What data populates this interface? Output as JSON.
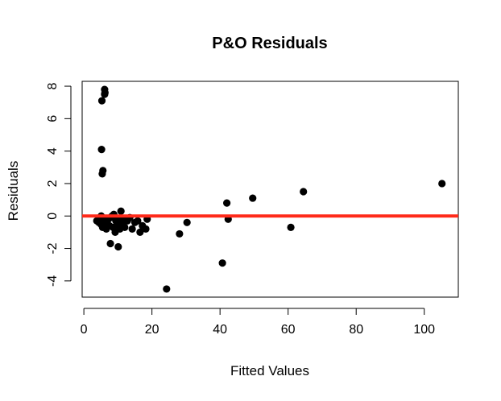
{
  "chart_data": {
    "type": "scatter",
    "title": "P&O Residuals",
    "xlabel": "Fitted Values",
    "ylabel": "Residuals",
    "xlim": [
      -0.5,
      110
    ],
    "ylim": [
      -5,
      8.3
    ],
    "x_ticks": [
      0,
      20,
      40,
      60,
      80,
      100
    ],
    "y_ticks": [
      -4,
      -2,
      0,
      2,
      4,
      6,
      8
    ],
    "x_tick_labels": [
      "0",
      "20",
      "40",
      "60",
      "80",
      "100"
    ],
    "y_tick_labels": [
      "-4",
      "-2",
      "0",
      "2",
      "4",
      "6",
      "8"
    ],
    "grid": false,
    "reference_line": {
      "y": 0,
      "color": "#ff2a1a"
    },
    "point_color": "#000000",
    "points": [
      {
        "x": 6.1,
        "y": 7.8
      },
      {
        "x": 6.2,
        "y": 7.6
      },
      {
        "x": 6.1,
        "y": 7.5
      },
      {
        "x": 5.3,
        "y": 7.1
      },
      {
        "x": 5.2,
        "y": 4.1
      },
      {
        "x": 5.6,
        "y": 2.8
      },
      {
        "x": 5.4,
        "y": 2.6
      },
      {
        "x": 105.2,
        "y": 2.0
      },
      {
        "x": 64.5,
        "y": 1.5
      },
      {
        "x": 49.6,
        "y": 1.1
      },
      {
        "x": 42.0,
        "y": 0.8
      },
      {
        "x": 42.4,
        "y": -0.2
      },
      {
        "x": 60.8,
        "y": -0.7
      },
      {
        "x": 30.3,
        "y": -0.4
      },
      {
        "x": 28.1,
        "y": -1.1
      },
      {
        "x": 40.7,
        "y": -2.9
      },
      {
        "x": 24.3,
        "y": -4.5
      },
      {
        "x": 7.8,
        "y": -1.7
      },
      {
        "x": 10.1,
        "y": -1.9
      },
      {
        "x": 9.2,
        "y": -1.0
      },
      {
        "x": 10.9,
        "y": 0.3
      },
      {
        "x": 3.8,
        "y": -0.3
      },
      {
        "x": 4.4,
        "y": -0.4
      },
      {
        "x": 5.0,
        "y": -0.5
      },
      {
        "x": 5.5,
        "y": -0.7
      },
      {
        "x": 6.2,
        "y": -0.6
      },
      {
        "x": 6.8,
        "y": -0.4
      },
      {
        "x": 7.2,
        "y": -0.2
      },
      {
        "x": 7.8,
        "y": -0.1
      },
      {
        "x": 8.3,
        "y": 0.0
      },
      {
        "x": 8.8,
        "y": 0.1
      },
      {
        "x": 9.4,
        "y": -0.3
      },
      {
        "x": 9.9,
        "y": -0.5
      },
      {
        "x": 10.6,
        "y": -0.8
      },
      {
        "x": 11.2,
        "y": -0.5
      },
      {
        "x": 12.0,
        "y": -0.7
      },
      {
        "x": 12.8,
        "y": -0.3
      },
      {
        "x": 13.5,
        "y": -0.1
      },
      {
        "x": 14.2,
        "y": -0.8
      },
      {
        "x": 15.0,
        "y": -0.4
      },
      {
        "x": 15.8,
        "y": -0.3
      },
      {
        "x": 16.5,
        "y": -1.0
      },
      {
        "x": 17.2,
        "y": -0.6
      },
      {
        "x": 18.2,
        "y": -0.8
      },
      {
        "x": 18.6,
        "y": -0.2
      },
      {
        "x": 5.8,
        "y": -0.2
      },
      {
        "x": 6.6,
        "y": -0.8
      },
      {
        "x": 7.5,
        "y": -0.6
      },
      {
        "x": 8.6,
        "y": -0.7
      },
      {
        "x": 9.6,
        "y": -0.2
      },
      {
        "x": 10.3,
        "y": -0.3
      },
      {
        "x": 11.6,
        "y": -0.2
      },
      {
        "x": 5.1,
        "y": 0.0
      },
      {
        "x": 4.9,
        "y": -0.2
      }
    ]
  }
}
